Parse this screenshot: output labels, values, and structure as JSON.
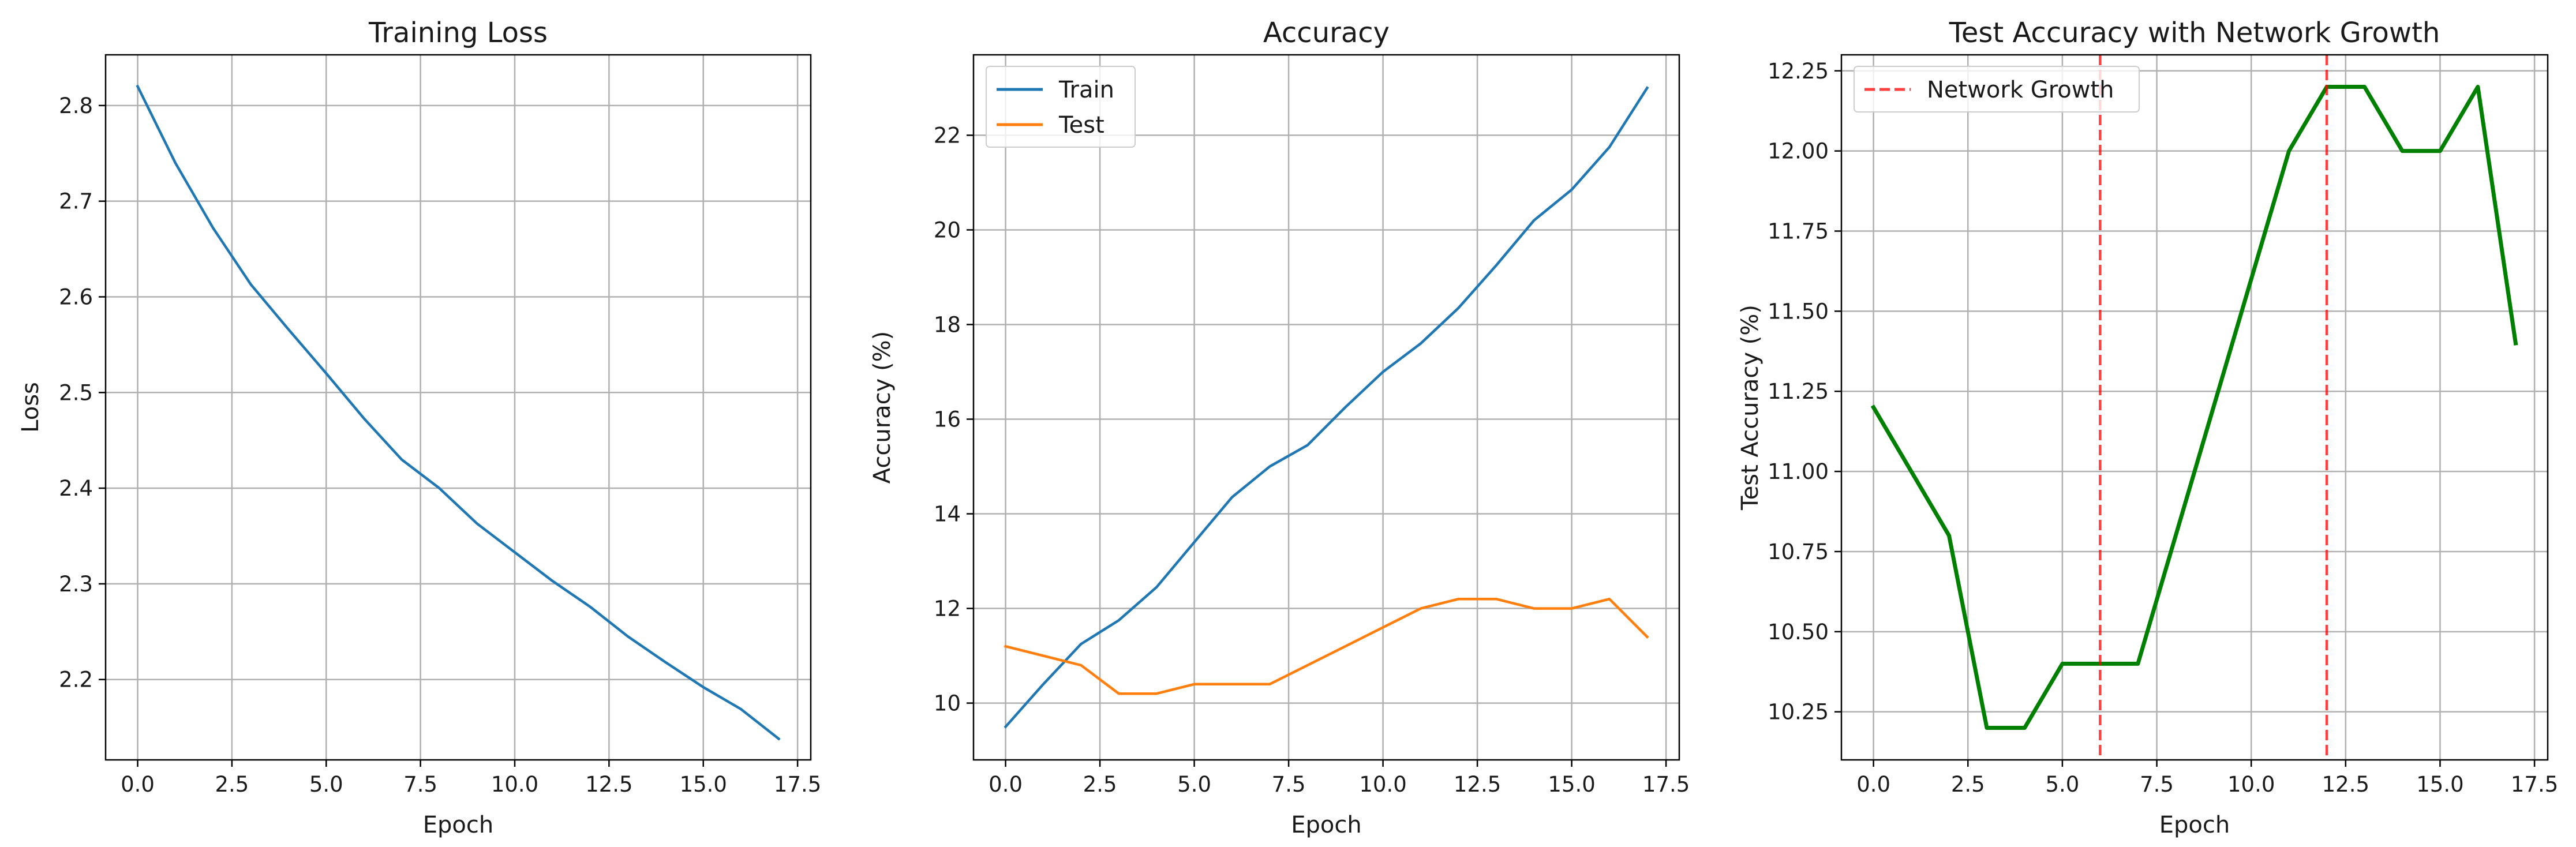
{
  "chart_data": [
    {
      "type": "line",
      "title": "Training Loss",
      "xlabel": "Epoch",
      "ylabel": "Loss",
      "xlim": [
        -0.85,
        17.85
      ],
      "ylim": [
        2.116,
        2.853
      ],
      "xticks": [
        0.0,
        2.5,
        5.0,
        7.5,
        10.0,
        12.5,
        15.0,
        17.5
      ],
      "xtick_labels": [
        "0.0",
        "2.5",
        "5.0",
        "7.5",
        "10.0",
        "12.5",
        "15.0",
        "17.5"
      ],
      "yticks": [
        2.2,
        2.3,
        2.4,
        2.5,
        2.6,
        2.7,
        2.8
      ],
      "ytick_labels": [
        "2.2",
        "2.3",
        "2.4",
        "2.5",
        "2.6",
        "2.7",
        "2.8"
      ],
      "grid": true,
      "series": [
        {
          "color": "#1f77b4",
          "line_width": 2,
          "x": [
            0,
            1,
            2,
            3,
            4,
            5,
            6,
            7,
            8,
            9,
            10,
            11,
            12,
            13,
            14,
            15,
            16,
            17
          ],
          "y": [
            2.82,
            2.74,
            2.672,
            2.613,
            2.566,
            2.52,
            2.473,
            2.43,
            2.4,
            2.363,
            2.333,
            2.303,
            2.276,
            2.245,
            2.218,
            2.192,
            2.169,
            2.138
          ]
        }
      ]
    },
    {
      "type": "line",
      "title": "Accuracy",
      "xlabel": "Epoch",
      "ylabel": "Accuracy (%)",
      "xlim": [
        -0.85,
        17.85
      ],
      "ylim": [
        8.8,
        23.7
      ],
      "xticks": [
        0.0,
        2.5,
        5.0,
        7.5,
        10.0,
        12.5,
        15.0,
        17.5
      ],
      "xtick_labels": [
        "0.0",
        "2.5",
        "5.0",
        "7.5",
        "10.0",
        "12.5",
        "15.0",
        "17.5"
      ],
      "yticks": [
        10,
        12,
        14,
        16,
        18,
        20,
        22
      ],
      "ytick_labels": [
        "10",
        "12",
        "14",
        "16",
        "18",
        "20",
        "22"
      ],
      "grid": true,
      "legend": "top-left",
      "series": [
        {
          "name": "Train",
          "color": "#1f77b4",
          "line_width": 2,
          "x": [
            0,
            1,
            2,
            3,
            4,
            5,
            6,
            7,
            8,
            9,
            10,
            11,
            12,
            13,
            14,
            15,
            16,
            17
          ],
          "y": [
            9.5,
            10.4,
            11.25,
            11.75,
            12.45,
            13.4,
            14.35,
            15.0,
            15.45,
            16.25,
            17.0,
            17.6,
            18.35,
            19.25,
            20.2,
            20.85,
            21.75,
            23.0
          ]
        },
        {
          "name": "Test",
          "color": "#ff7f0e",
          "line_width": 2,
          "x": [
            0,
            1,
            2,
            3,
            4,
            5,
            6,
            7,
            8,
            9,
            10,
            11,
            12,
            13,
            14,
            15,
            16,
            17
          ],
          "y": [
            11.2,
            11.0,
            10.8,
            10.2,
            10.2,
            10.4,
            10.4,
            10.4,
            10.8,
            11.2,
            11.6,
            12.0,
            12.2,
            12.2,
            12.0,
            12.0,
            12.2,
            11.4
          ]
        }
      ]
    },
    {
      "type": "line",
      "title": "Test Accuracy with Network Growth",
      "xlabel": "Epoch",
      "ylabel": "Test Accuracy (%)",
      "xlim": [
        -0.85,
        17.85
      ],
      "ylim": [
        10.1,
        12.3
      ],
      "xticks": [
        0.0,
        2.5,
        5.0,
        7.5,
        10.0,
        12.5,
        15.0,
        17.5
      ],
      "xtick_labels": [
        "0.0",
        "2.5",
        "5.0",
        "7.5",
        "10.0",
        "12.5",
        "15.0",
        "17.5"
      ],
      "yticks": [
        10.25,
        10.5,
        10.75,
        11.0,
        11.25,
        11.5,
        11.75,
        12.0,
        12.25
      ],
      "ytick_labels": [
        "10.25",
        "10.50",
        "10.75",
        "11.00",
        "11.25",
        "11.50",
        "11.75",
        "12.00",
        "12.25"
      ],
      "grid": true,
      "legend": "top-left",
      "series": [
        {
          "color": "#008000",
          "line_width": 3,
          "x": [
            0,
            1,
            2,
            3,
            4,
            5,
            6,
            7,
            8,
            9,
            10,
            11,
            12,
            13,
            14,
            15,
            16,
            17
          ],
          "y": [
            11.2,
            11.0,
            10.8,
            10.2,
            10.2,
            10.4,
            10.4,
            10.4,
            10.8,
            11.2,
            11.6,
            12.0,
            12.2,
            12.2,
            12.0,
            12.0,
            12.2,
            11.4
          ]
        }
      ],
      "vlines": [
        {
          "name": "Network Growth",
          "x": 6,
          "color": "#ff0000",
          "style": "dashed"
        },
        {
          "x": 12,
          "color": "#ff0000",
          "style": "dashed"
        }
      ]
    }
  ]
}
